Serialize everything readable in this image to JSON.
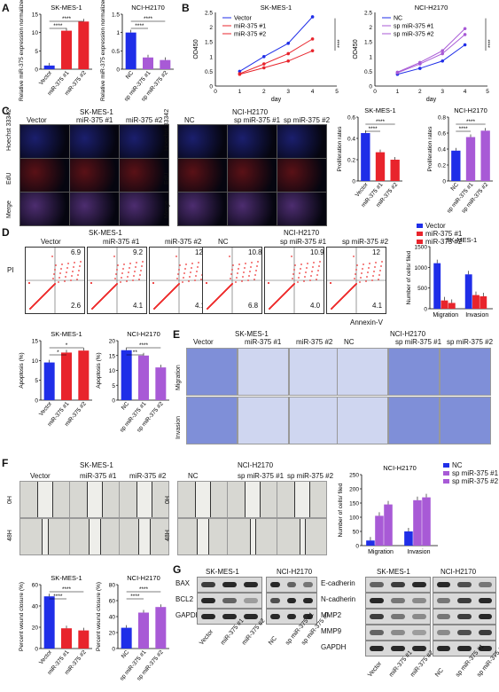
{
  "panels": {
    "A": "A",
    "B": "B",
    "C": "C",
    "D": "D",
    "E": "E",
    "F": "F",
    "G": "G"
  },
  "cells": {
    "s": "SK-MES-1",
    "n": "NCI-H2170"
  },
  "groups_s": [
    "Vector",
    "miR-375 #1",
    "miR-375 #2"
  ],
  "groups_n": [
    "NC",
    "sp miR-375 #1",
    "sp miR-375 #2"
  ],
  "sig": {
    "four": "****",
    "two": "**",
    "one": "*"
  },
  "colors": {
    "blue": "#1f2ee8",
    "red": "#e8242c",
    "purple": "#a85ad6",
    "grey": "#888888"
  },
  "A": {
    "ylabel": "Relative miR-375 expression normalized to U6"
  },
  "B": {
    "ylabel": "OD450",
    "xlabel": "day"
  },
  "C": {
    "rows": [
      "Hoechst 33342",
      "EdU",
      "Merge"
    ],
    "ylabel": "Proliferation rates"
  },
  "D": {
    "xlabel": "Annexin-V",
    "ylabel": "PI",
    "quads": {
      "s": [
        [
          "6.9",
          "2.6"
        ],
        [
          "9.2",
          "4.1"
        ],
        [
          "12",
          "4.1"
        ]
      ],
      "n": [
        [
          "10.8",
          "6.8"
        ],
        [
          "10.9",
          "4.0"
        ],
        [
          "12",
          "4.1"
        ]
      ]
    },
    "bar_ylabel": "Number of cells/ filed",
    "cats": [
      "Migration",
      "Invasion"
    ],
    "apoptosis": "Apoptosis (%)"
  },
  "E": {
    "rows": [
      "Migration",
      "Invasion"
    ]
  },
  "F": {
    "rows": [
      "0H",
      "48H"
    ],
    "bar_ylabel": "Number of cells/ filed",
    "cats": [
      "Migration",
      "Invasion"
    ],
    "closure": "Percent wound closure (%)"
  },
  "G": {
    "left": [
      "BAX",
      "BCL2",
      "GAPDH"
    ],
    "right": [
      "E-cadherin",
      "N-cadherin",
      "MMP2",
      "MMP9",
      "GAPDH"
    ]
  },
  "chart_data": [
    {
      "type": "bar",
      "title": "SK-MES-1",
      "categories": [
        "Vector",
        "miR-375 #1",
        "miR-375 #2"
      ],
      "values": [
        1,
        10.5,
        13
      ],
      "ylim": [
        0,
        15
      ],
      "yticks": [
        0,
        5,
        10,
        15
      ],
      "ylabel": "Relative miR-375 expression normalized to U6"
    },
    {
      "type": "bar",
      "title": "NCI-H2170",
      "categories": [
        "NC",
        "sp miR-375 #1",
        "sp miR-375 #2"
      ],
      "values": [
        1,
        0.32,
        0.25
      ],
      "ylim": [
        0,
        1.5
      ],
      "yticks": [
        0,
        0.5,
        1,
        1.5
      ]
    },
    {
      "type": "line",
      "title": "SK-MES-1",
      "x": [
        1,
        2,
        3,
        4
      ],
      "xlim": [
        0,
        5
      ],
      "ylim": [
        0,
        2.5
      ],
      "yticks": [
        0,
        0.5,
        1,
        1.5,
        2,
        2.5
      ],
      "series": [
        {
          "name": "Vector",
          "values": [
            0.5,
            1,
            1.45,
            2.35
          ]
        },
        {
          "name": "miR-375 #1",
          "values": [
            0.42,
            0.75,
            1.1,
            1.6
          ]
        },
        {
          "name": "miR-375 #2",
          "values": [
            0.4,
            0.62,
            0.85,
            1.2
          ]
        }
      ]
    },
    {
      "type": "line",
      "title": "NCI-H2170",
      "x": [
        1,
        2,
        3,
        4
      ],
      "xlim": [
        0,
        5
      ],
      "ylim": [
        0,
        2.5
      ],
      "yticks": [
        0,
        0.5,
        1,
        1.5,
        2,
        2.5
      ],
      "series": [
        {
          "name": "NC",
          "values": [
            0.4,
            0.6,
            0.85,
            1.4
          ]
        },
        {
          "name": "sp miR-375 #1",
          "values": [
            0.45,
            0.75,
            1.1,
            1.75
          ]
        },
        {
          "name": "sp miR-375 #2",
          "values": [
            0.47,
            0.8,
            1.2,
            1.95
          ]
        }
      ]
    },
    {
      "type": "bar",
      "title": "SK-MES-1",
      "categories": [
        "Vector",
        "miR-375 #1",
        "miR-375 #2"
      ],
      "values": [
        0.45,
        0.27,
        0.2
      ],
      "ylim": [
        0,
        0.6
      ],
      "yticks": [
        0,
        0.2,
        0.4,
        0.6
      ]
    },
    {
      "type": "bar",
      "title": "NCI-H2170",
      "categories": [
        "NC",
        "sp miR-375 #1",
        "sp miR-375 #2"
      ],
      "values": [
        0.38,
        0.55,
        0.63
      ],
      "ylim": [
        0,
        0.8
      ],
      "yticks": [
        0,
        0.2,
        0.4,
        0.6,
        0.8
      ]
    },
    {
      "type": "bar",
      "title": "SK-MES-1",
      "categories": [
        "Migration",
        "Invasion"
      ],
      "ylim": [
        0,
        1500
      ],
      "yticks": [
        0,
        500,
        1000,
        1500
      ],
      "series": [
        {
          "name": "Vector",
          "values": [
            1100,
            830
          ]
        },
        {
          "name": "miR-375 #1",
          "values": [
            200,
            330
          ]
        },
        {
          "name": "miR-375 #2",
          "values": [
            140,
            300
          ]
        }
      ]
    },
    {
      "type": "bar",
      "title": "SK-MES-1",
      "categories": [
        "Vector",
        "miR-375 #1",
        "miR-375 #2"
      ],
      "values": [
        9.5,
        12,
        12.5
      ],
      "ylim": [
        0,
        15
      ],
      "yticks": [
        0,
        5,
        10,
        15
      ]
    },
    {
      "type": "bar",
      "title": "NCI-H2170",
      "categories": [
        "NC",
        "sp miR-375 #1",
        "sp miR-375 #2"
      ],
      "values": [
        16.8,
        15,
        11
      ],
      "ylim": [
        0,
        20
      ],
      "yticks": [
        0,
        5,
        10,
        15,
        20
      ]
    },
    {
      "type": "bar",
      "title": "NCI-H2170",
      "categories": [
        "Migration",
        "Invasion"
      ],
      "ylim": [
        0,
        250
      ],
      "yticks": [
        0,
        50,
        100,
        150,
        200,
        250
      ],
      "series": [
        {
          "name": "NC",
          "values": [
            18,
            50
          ]
        },
        {
          "name": "sp miR-375 #1",
          "values": [
            105,
            160
          ]
        },
        {
          "name": "sp miR-375 #2",
          "values": [
            145,
            170
          ]
        }
      ]
    },
    {
      "type": "bar",
      "title": "SK-MES-1",
      "categories": [
        "Vector",
        "miR-375 #1",
        "miR-375 #2"
      ],
      "values": [
        49,
        19,
        17
      ],
      "ylim": [
        0,
        60
      ],
      "yticks": [
        0,
        20,
        40,
        60
      ]
    },
    {
      "type": "bar",
      "title": "NCI-H2170",
      "categories": [
        "NC",
        "sp miR-375 #1",
        "sp miR-375 #2"
      ],
      "values": [
        26,
        45,
        52
      ],
      "ylim": [
        0,
        80
      ],
      "yticks": [
        0,
        20,
        40,
        60,
        80
      ]
    }
  ]
}
